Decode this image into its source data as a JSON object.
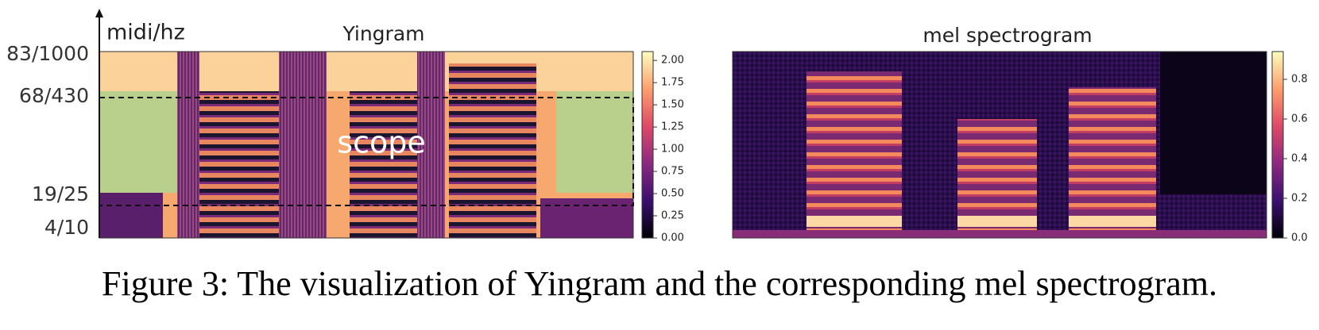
{
  "figure": {
    "caption": "Figure 3: The visualization of Yingram and the corresponding mel spectrogram.",
    "panels": [
      {
        "title": "Yingram",
        "y_label": "midi/hz",
        "y_ticks": [
          "83/1000",
          "68/430",
          "19/25",
          "4/10"
        ],
        "annotation": "scope",
        "colorbar": {
          "lim": [
            0,
            2.1
          ],
          "ticks": [
            {
              "value": 0,
              "label": "0.00"
            },
            {
              "value": 0.25,
              "label": "0.25"
            },
            {
              "value": 0.5,
              "label": "0.50"
            },
            {
              "value": 0.75,
              "label": "0.75"
            },
            {
              "value": 1,
              "label": "1.00"
            },
            {
              "value": 1.25,
              "label": "1.25"
            },
            {
              "value": 1.5,
              "label": "1.50"
            },
            {
              "value": 1.75,
              "label": "1.75"
            },
            {
              "value": 2,
              "label": "2.00"
            }
          ]
        }
      },
      {
        "title": "mel spectrogram",
        "colorbar": {
          "lim": [
            0,
            0.94
          ],
          "ticks": [
            {
              "value": 0,
              "label": "0.0"
            },
            {
              "value": 0.2,
              "label": "0.2"
            },
            {
              "value": 0.4,
              "label": "0.4"
            },
            {
              "value": 0.6,
              "label": "0.6"
            },
            {
              "value": 0.8,
              "label": "0.8"
            }
          ]
        }
      }
    ]
  }
}
